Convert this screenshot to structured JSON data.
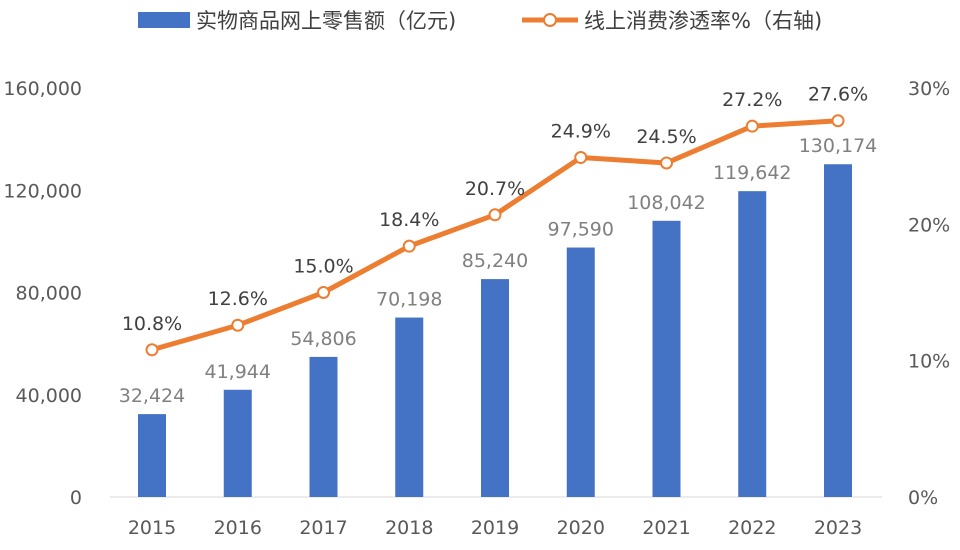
{
  "chart_data": {
    "type": "bar+line",
    "categories": [
      "2015",
      "2016",
      "2017",
      "2018",
      "2019",
      "2020",
      "2021",
      "2022",
      "2023"
    ],
    "series": [
      {
        "name": "实物商品网上零售额（亿元)",
        "type": "bar",
        "axis": "left",
        "color": "#4472C4",
        "values": [
          32424,
          41944,
          54806,
          70198,
          85240,
          97590,
          108042,
          119642,
          130174
        ],
        "labels": [
          "32,424",
          "41,944",
          "54,806",
          "70,198",
          "85,240",
          "97,590",
          "108,042",
          "119,642",
          "130,174"
        ]
      },
      {
        "name": "线上消费渗透率%（右轴)",
        "type": "line",
        "axis": "right",
        "color": "#ED7D31",
        "values": [
          10.8,
          12.6,
          15.0,
          18.4,
          20.7,
          24.9,
          24.5,
          27.2,
          27.6
        ],
        "labels": [
          "10.8%",
          "12.6%",
          "15.0%",
          "18.4%",
          "20.7%",
          "24.9%",
          "24.5%",
          "27.2%",
          "27.6%"
        ]
      }
    ],
    "y_left": {
      "lim": [
        0,
        160000
      ],
      "ticks": [
        "0",
        "40,000",
        "80,000",
        "120,000",
        "160,000"
      ]
    },
    "y_right": {
      "lim": [
        0,
        30
      ],
      "ticks": [
        "0%",
        "10%",
        "20%",
        "30%"
      ]
    },
    "grid": false,
    "legend": "top"
  }
}
